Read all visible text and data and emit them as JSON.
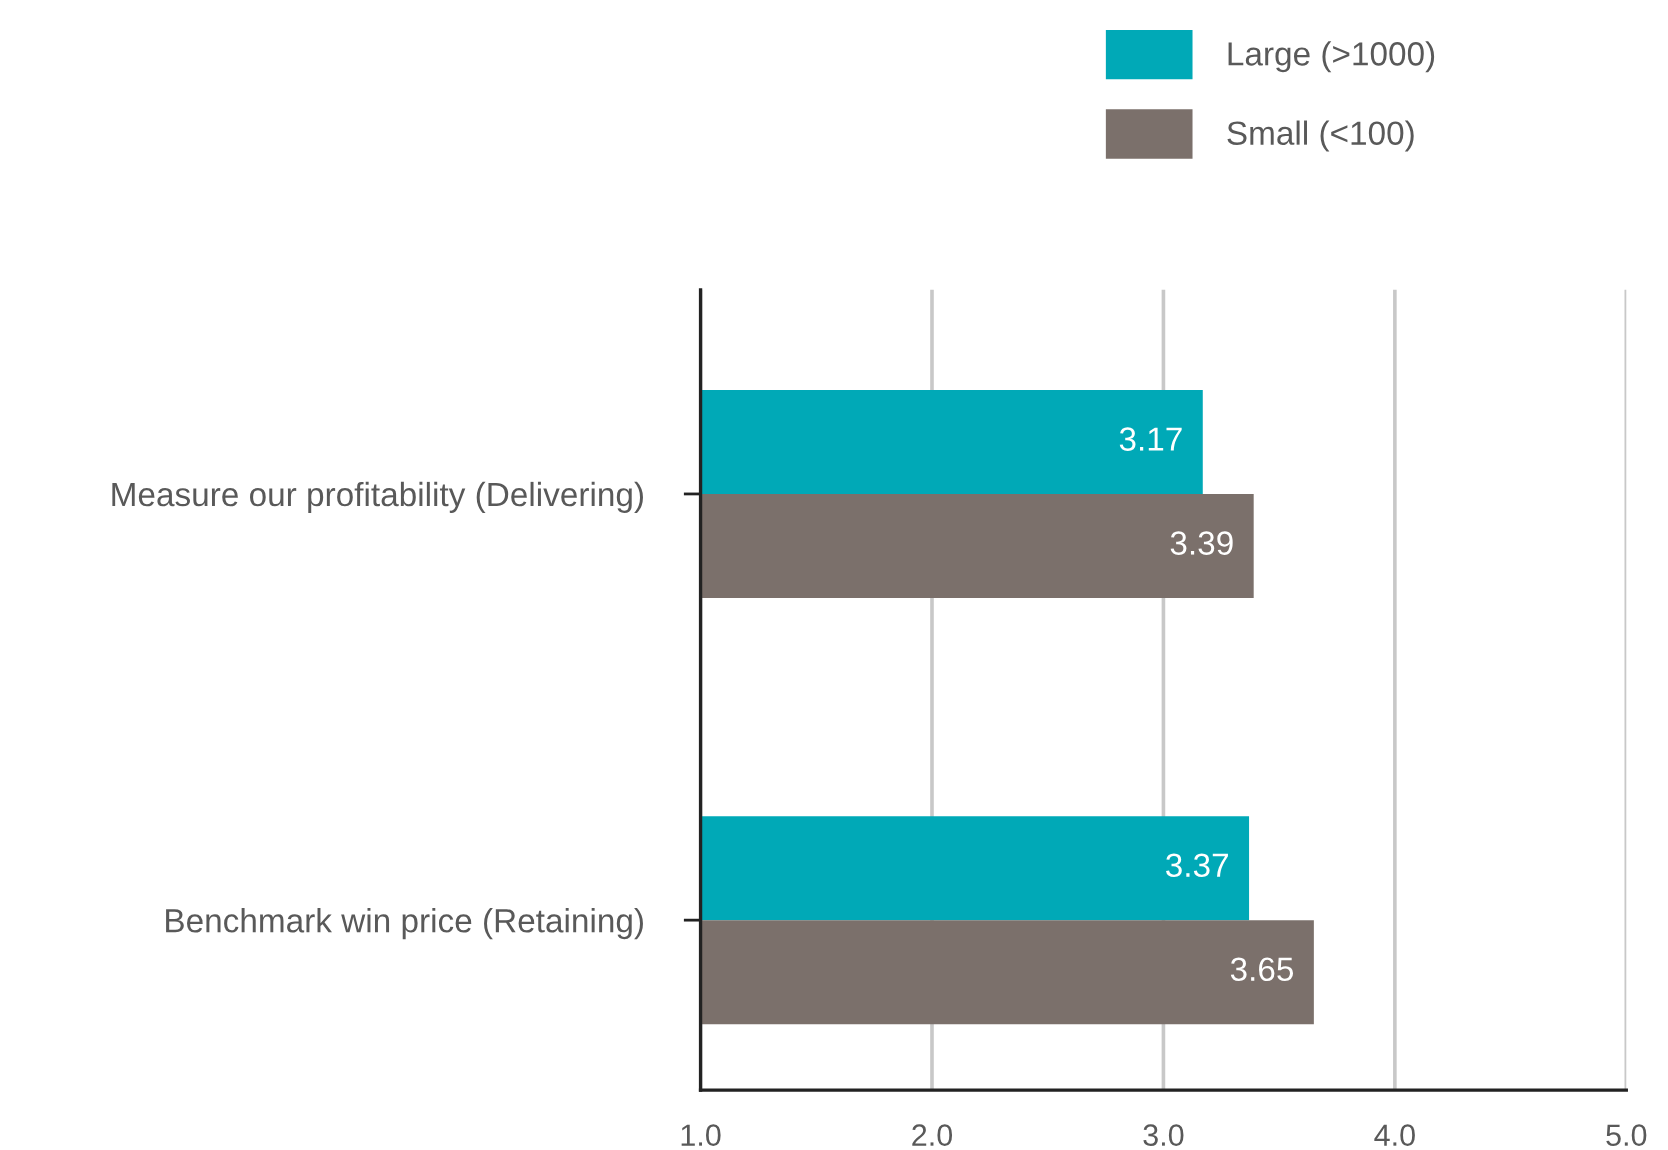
{
  "chart_data": {
    "type": "bar",
    "orientation": "horizontal",
    "categories": [
      "Measure our profitability (Delivering)",
      "Benchmark win price (Retaining)"
    ],
    "series": [
      {
        "name": "Large (>1000)",
        "color": "#00a9b7",
        "values": [
          3.17,
          3.37
        ]
      },
      {
        "name": "Small (<100)",
        "color": "#7b706b",
        "values": [
          3.39,
          3.65
        ]
      }
    ],
    "xlim": [
      1,
      5
    ],
    "xticks": [
      {
        "value": 1,
        "label": "1.0"
      },
      {
        "value": 2,
        "label": "2.0"
      },
      {
        "value": 3,
        "label": "3.0"
      },
      {
        "value": 4,
        "label": "4.0"
      },
      {
        "value": 5,
        "label": "5.0"
      }
    ],
    "grid": "x",
    "legend": "top right",
    "data_labels": true
  }
}
